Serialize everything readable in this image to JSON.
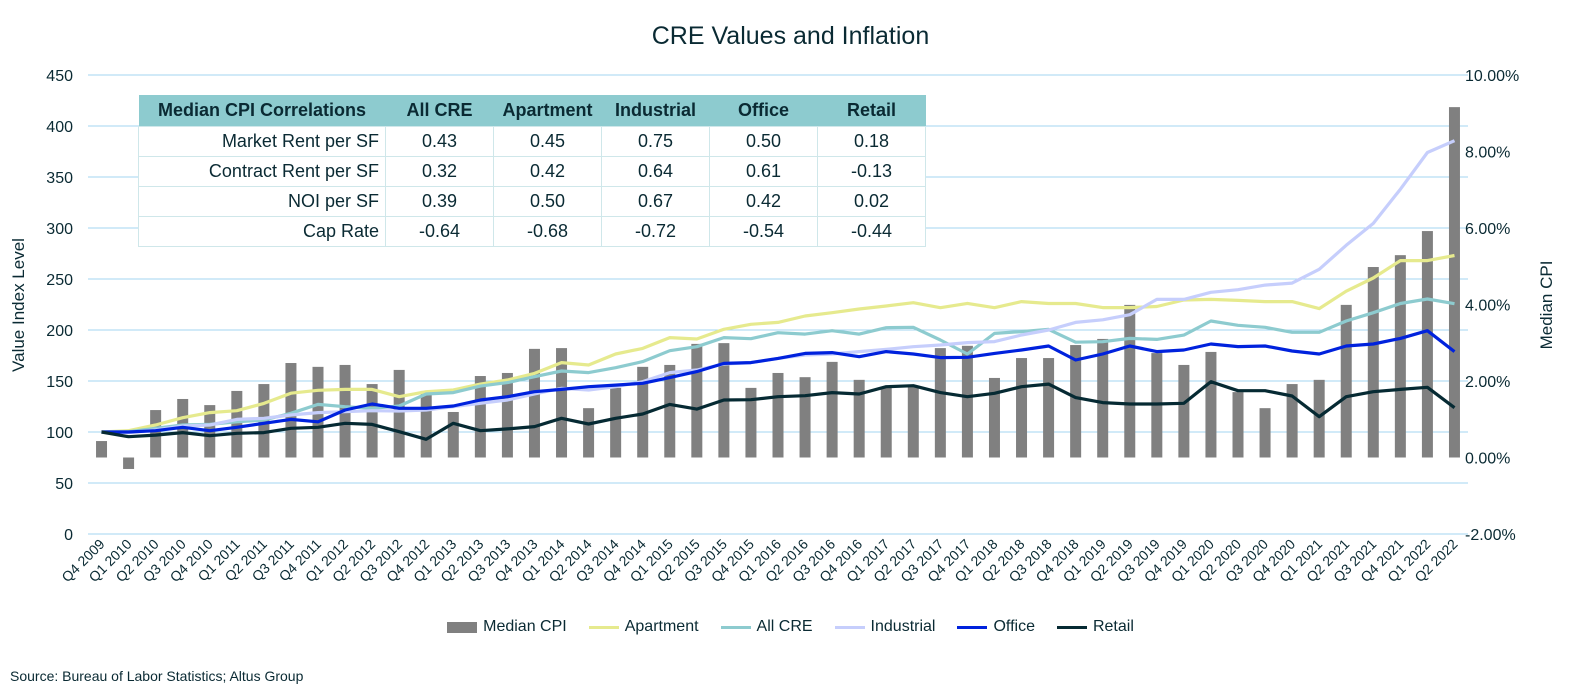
{
  "chart_data": {
    "type": "bar+line",
    "title": "CRE Values and Inflation",
    "ylabel": "Value Index Level",
    "ylabel_right": "Median CPI",
    "ylim": [
      0,
      450
    ],
    "yticks": [
      "0",
      "50",
      "100",
      "150",
      "200",
      "250",
      "300",
      "350",
      "400",
      "450"
    ],
    "ylim_right": [
      -2,
      10
    ],
    "yticks_right": [
      "-2.00%",
      "0.00%",
      "2.00%",
      "4.00%",
      "6.00%",
      "8.00%",
      "10.00%"
    ],
    "grid": true,
    "legend_position": "bottom",
    "categories": [
      "Q4 2009",
      "Q1 2010",
      "Q2 2010",
      "Q3 2010",
      "Q4 2010",
      "Q1 2011",
      "Q2 2011",
      "Q3 2011",
      "Q4 2011",
      "Q1 2012",
      "Q2 2012",
      "Q3 2012",
      "Q4 2012",
      "Q1 2013",
      "Q2 2013",
      "Q3 2013",
      "Q4 2013",
      "Q1 2014",
      "Q2 2014",
      "Q3 2014",
      "Q4 2014",
      "Q1 2015",
      "Q2 2015",
      "Q3 2015",
      "Q4 2015",
      "Q1 2016",
      "Q2 2016",
      "Q3 2016",
      "Q4 2016",
      "Q1 2017",
      "Q2 2017",
      "Q3 2017",
      "Q4 2017",
      "Q1 2018",
      "Q2 2018",
      "Q3 2018",
      "Q4 2018",
      "Q1 2019",
      "Q2 2019",
      "Q3 2019",
      "Q4 2019",
      "Q1 2020",
      "Q2 2020",
      "Q3 2020",
      "Q4 2020",
      "Q1 2021",
      "Q2 2021",
      "Q3 2021",
      "Q4 2021",
      "Q1 2022",
      "Q2 2022"
    ],
    "series": [
      {
        "name": "Median CPI",
        "kind": "bar",
        "axis": "right",
        "unit": "%",
        "color": "#808080",
        "values": [
          0.43,
          -0.3,
          1.24,
          1.53,
          1.37,
          1.74,
          1.92,
          2.47,
          2.37,
          2.42,
          1.92,
          2.29,
          1.74,
          1.19,
          2.13,
          2.21,
          2.84,
          2.86,
          1.29,
          1.82,
          2.37,
          2.42,
          2.97,
          2.99,
          1.82,
          2.21,
          2.1,
          2.5,
          2.03,
          1.84,
          1.84,
          2.86,
          2.92,
          2.08,
          2.6,
          2.6,
          2.94,
          3.1,
          3.99,
          2.73,
          2.42,
          2.76,
          1.71,
          1.29,
          1.92,
          2.03,
          3.99,
          4.98,
          5.29,
          5.92,
          9.16
        ]
      },
      {
        "name": "Apartment",
        "kind": "line",
        "axis": "left",
        "color": "#e6ea8e",
        "values": [
          100,
          101.3,
          106.9,
          114,
          119,
          120.9,
          128,
          138,
          140.9,
          141.8,
          141.8,
          134.6,
          139.5,
          141.2,
          147,
          151,
          157.5,
          168,
          165.7,
          176.5,
          182,
          192.5,
          191.2,
          200.7,
          205.6,
          207.5,
          213.7,
          217,
          220.6,
          223.5,
          226.8,
          221.9,
          226.1,
          221.9,
          227.8,
          226,
          226,
          222,
          222,
          223,
          229.4,
          230,
          229,
          227.8,
          227.8,
          221,
          238,
          251,
          268,
          268,
          273
        ]
      },
      {
        "name": "All CRE",
        "kind": "line",
        "axis": "left",
        "color": "#8dcbcf",
        "values": [
          100,
          100.3,
          103.6,
          106.9,
          107.5,
          110,
          111.8,
          118.3,
          127.1,
          124.8,
          123.2,
          125.5,
          137.3,
          138.6,
          145,
          148.4,
          154.2,
          159.8,
          158.2,
          163,
          169,
          179.7,
          183.6,
          192.5,
          191.5,
          197.4,
          196,
          199.3,
          196,
          202.3,
          202.6,
          190.2,
          176.5,
          196.7,
          198.4,
          200.6,
          188,
          188.5,
          191.8,
          190.8,
          195,
          208.8,
          204.6,
          202.6,
          197.7,
          197.7,
          208.8,
          217,
          226,
          230.4,
          225.8
        ]
      },
      {
        "name": "Industrial",
        "kind": "line",
        "axis": "left",
        "color": "#c6cefc",
        "values": [
          100,
          99.4,
          102,
          105.9,
          106.9,
          112.4,
          113.4,
          116.7,
          119,
          119.9,
          120.9,
          120.6,
          121.6,
          124.8,
          128.1,
          131.4,
          137.3,
          142.8,
          141.2,
          144.4,
          149.3,
          158.2,
          160.8,
          166.7,
          168,
          172.2,
          175.5,
          176.5,
          178.8,
          181,
          183.6,
          185.3,
          187.6,
          188.6,
          195.1,
          200,
          207.5,
          210,
          215,
          230,
          230,
          237,
          239.5,
          244,
          246,
          259.5,
          283,
          304.5,
          338,
          374,
          385.6
        ]
      },
      {
        "name": "Office",
        "kind": "line",
        "axis": "left",
        "color": "#0022dd",
        "values": [
          100,
          100,
          101.3,
          104.6,
          101.3,
          104.6,
          108.5,
          112.4,
          110,
          121.6,
          127.5,
          123.2,
          123.2,
          125.5,
          131.4,
          134.6,
          139.5,
          141.8,
          144.4,
          146,
          147.7,
          153.3,
          159.2,
          167.3,
          168,
          172.2,
          177.1,
          177.8,
          173.8,
          178.8,
          176.5,
          172.9,
          173.2,
          177.1,
          180.4,
          184.3,
          170.6,
          176.5,
          184.3,
          178.8,
          180.4,
          186.3,
          183.7,
          184.3,
          179.4,
          176.5,
          184.3,
          186.3,
          191.8,
          199.3,
          178.8
        ]
      },
      {
        "name": "Retail",
        "kind": "line",
        "axis": "left",
        "color": "#062a33",
        "values": [
          100,
          95.4,
          97,
          99.4,
          96.4,
          98.7,
          99.4,
          103.6,
          104.6,
          108.5,
          107.5,
          100.3,
          92.8,
          108.5,
          101.3,
          103,
          105.3,
          113.4,
          107.8,
          113.4,
          117.6,
          127.1,
          122.5,
          131.4,
          131.7,
          134.6,
          135.6,
          138.6,
          137.3,
          144.4,
          145.4,
          138.6,
          134.6,
          137.9,
          144.4,
          147,
          133.7,
          128.8,
          127.5,
          127.5,
          128.1,
          149.3,
          140.5,
          140.5,
          135.3,
          115,
          134.6,
          139.5,
          141.8,
          143.8,
          123.8
        ]
      }
    ]
  },
  "table": {
    "headers": [
      "Median CPI Correlations",
      "All CRE",
      "Apartment",
      "Industrial",
      "Office",
      "Retail"
    ],
    "rows": [
      [
        "Market Rent per SF",
        "0.43",
        "0.45",
        "0.75",
        "0.50",
        "0.18"
      ],
      [
        "Contract Rent per SF",
        "0.32",
        "0.42",
        "0.64",
        "0.61",
        "-0.13"
      ],
      [
        "NOI per SF",
        "0.39",
        "0.50",
        "0.67",
        "0.42",
        "0.02"
      ],
      [
        "Cap Rate",
        "-0.64",
        "-0.68",
        "-0.72",
        "-0.54",
        "-0.44"
      ]
    ]
  },
  "source": "Source: Bureau of Labor Statistics; Altus Group"
}
